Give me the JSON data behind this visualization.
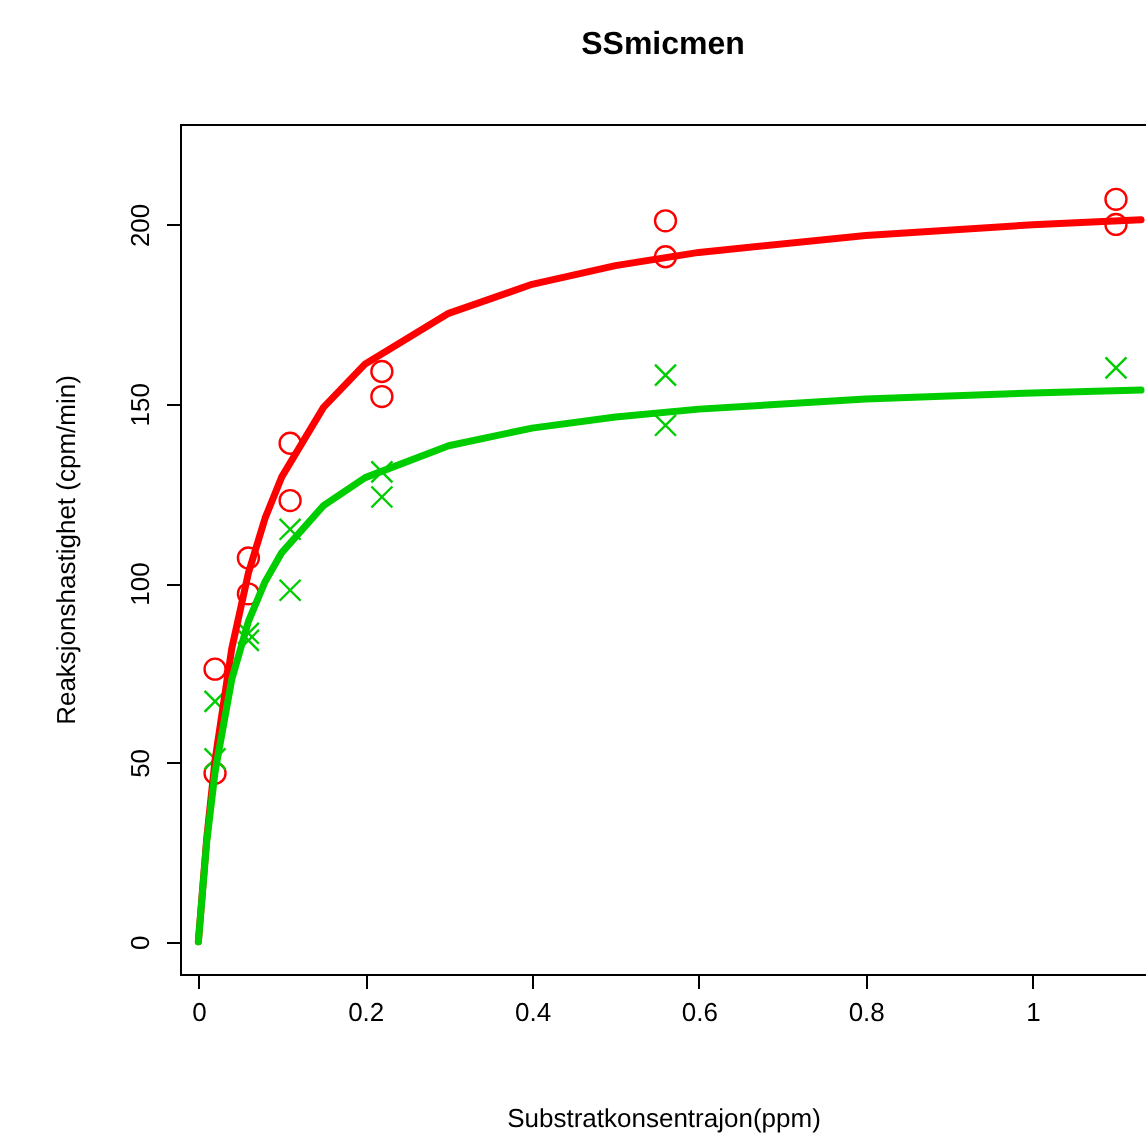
{
  "chart_data": {
    "type": "scatter",
    "title": "SSmicmen",
    "xlabel": "Substratkonsentrajon(ppm)",
    "ylabel": "Reaksjonshastighet (cpm/min)",
    "xlim": [
      -0.022,
      1.136
    ],
    "ylim": [
      -9,
      228
    ],
    "xticks": [
      0,
      0.2,
      0.4,
      0.6,
      0.8,
      1
    ],
    "yticks": [
      0,
      50,
      100,
      150,
      200
    ],
    "grid": false,
    "series": [
      {
        "marker": "circle",
        "color": "#ff0000",
        "x": [
          0.02,
          0.02,
          0.06,
          0.06,
          0.11,
          0.11,
          0.22,
          0.22,
          0.56,
          0.56,
          1.1,
          1.1
        ],
        "values": [
          76,
          47,
          97,
          107,
          123,
          139,
          159,
          152,
          191,
          201,
          207,
          200
        ]
      },
      {
        "marker": "cross",
        "color": "#00cd00",
        "x": [
          0.02,
          0.02,
          0.06,
          0.06,
          0.11,
          0.11,
          0.22,
          0.22,
          0.56,
          0.56,
          1.1
        ],
        "values": [
          67,
          51,
          84,
          86,
          98,
          115,
          131,
          124,
          144,
          158,
          160
        ]
      },
      {
        "type": "line",
        "line_style": "solid",
        "color": "#ff0000",
        "x": [
          0,
          0.01,
          0.02,
          0.04,
          0.06,
          0.08,
          0.1,
          0.15,
          0.2,
          0.3,
          0.4,
          0.5,
          0.6,
          0.8,
          1,
          1.13
        ],
        "values": [
          0,
          28.7,
          50.6,
          81.7,
          102.8,
          118.1,
          129.6,
          149,
          161.1,
          175.2,
          183.3,
          188.5,
          192.2,
          196.9,
          199.9,
          201.3
        ]
      },
      {
        "type": "line",
        "line_style": "solid",
        "color": "#00cd00",
        "x": [
          0,
          0.01,
          0.02,
          0.04,
          0.06,
          0.08,
          0.1,
          0.15,
          0.2,
          0.3,
          0.4,
          0.5,
          0.6,
          0.8,
          1,
          1.13
        ],
        "values": [
          0,
          27.8,
          47.3,
          73.1,
          89.3,
          100.4,
          108.5,
          121.6,
          129.4,
          138.3,
          143.2,
          146.3,
          148.5,
          151.3,
          153,
          153.8
        ]
      }
    ]
  }
}
